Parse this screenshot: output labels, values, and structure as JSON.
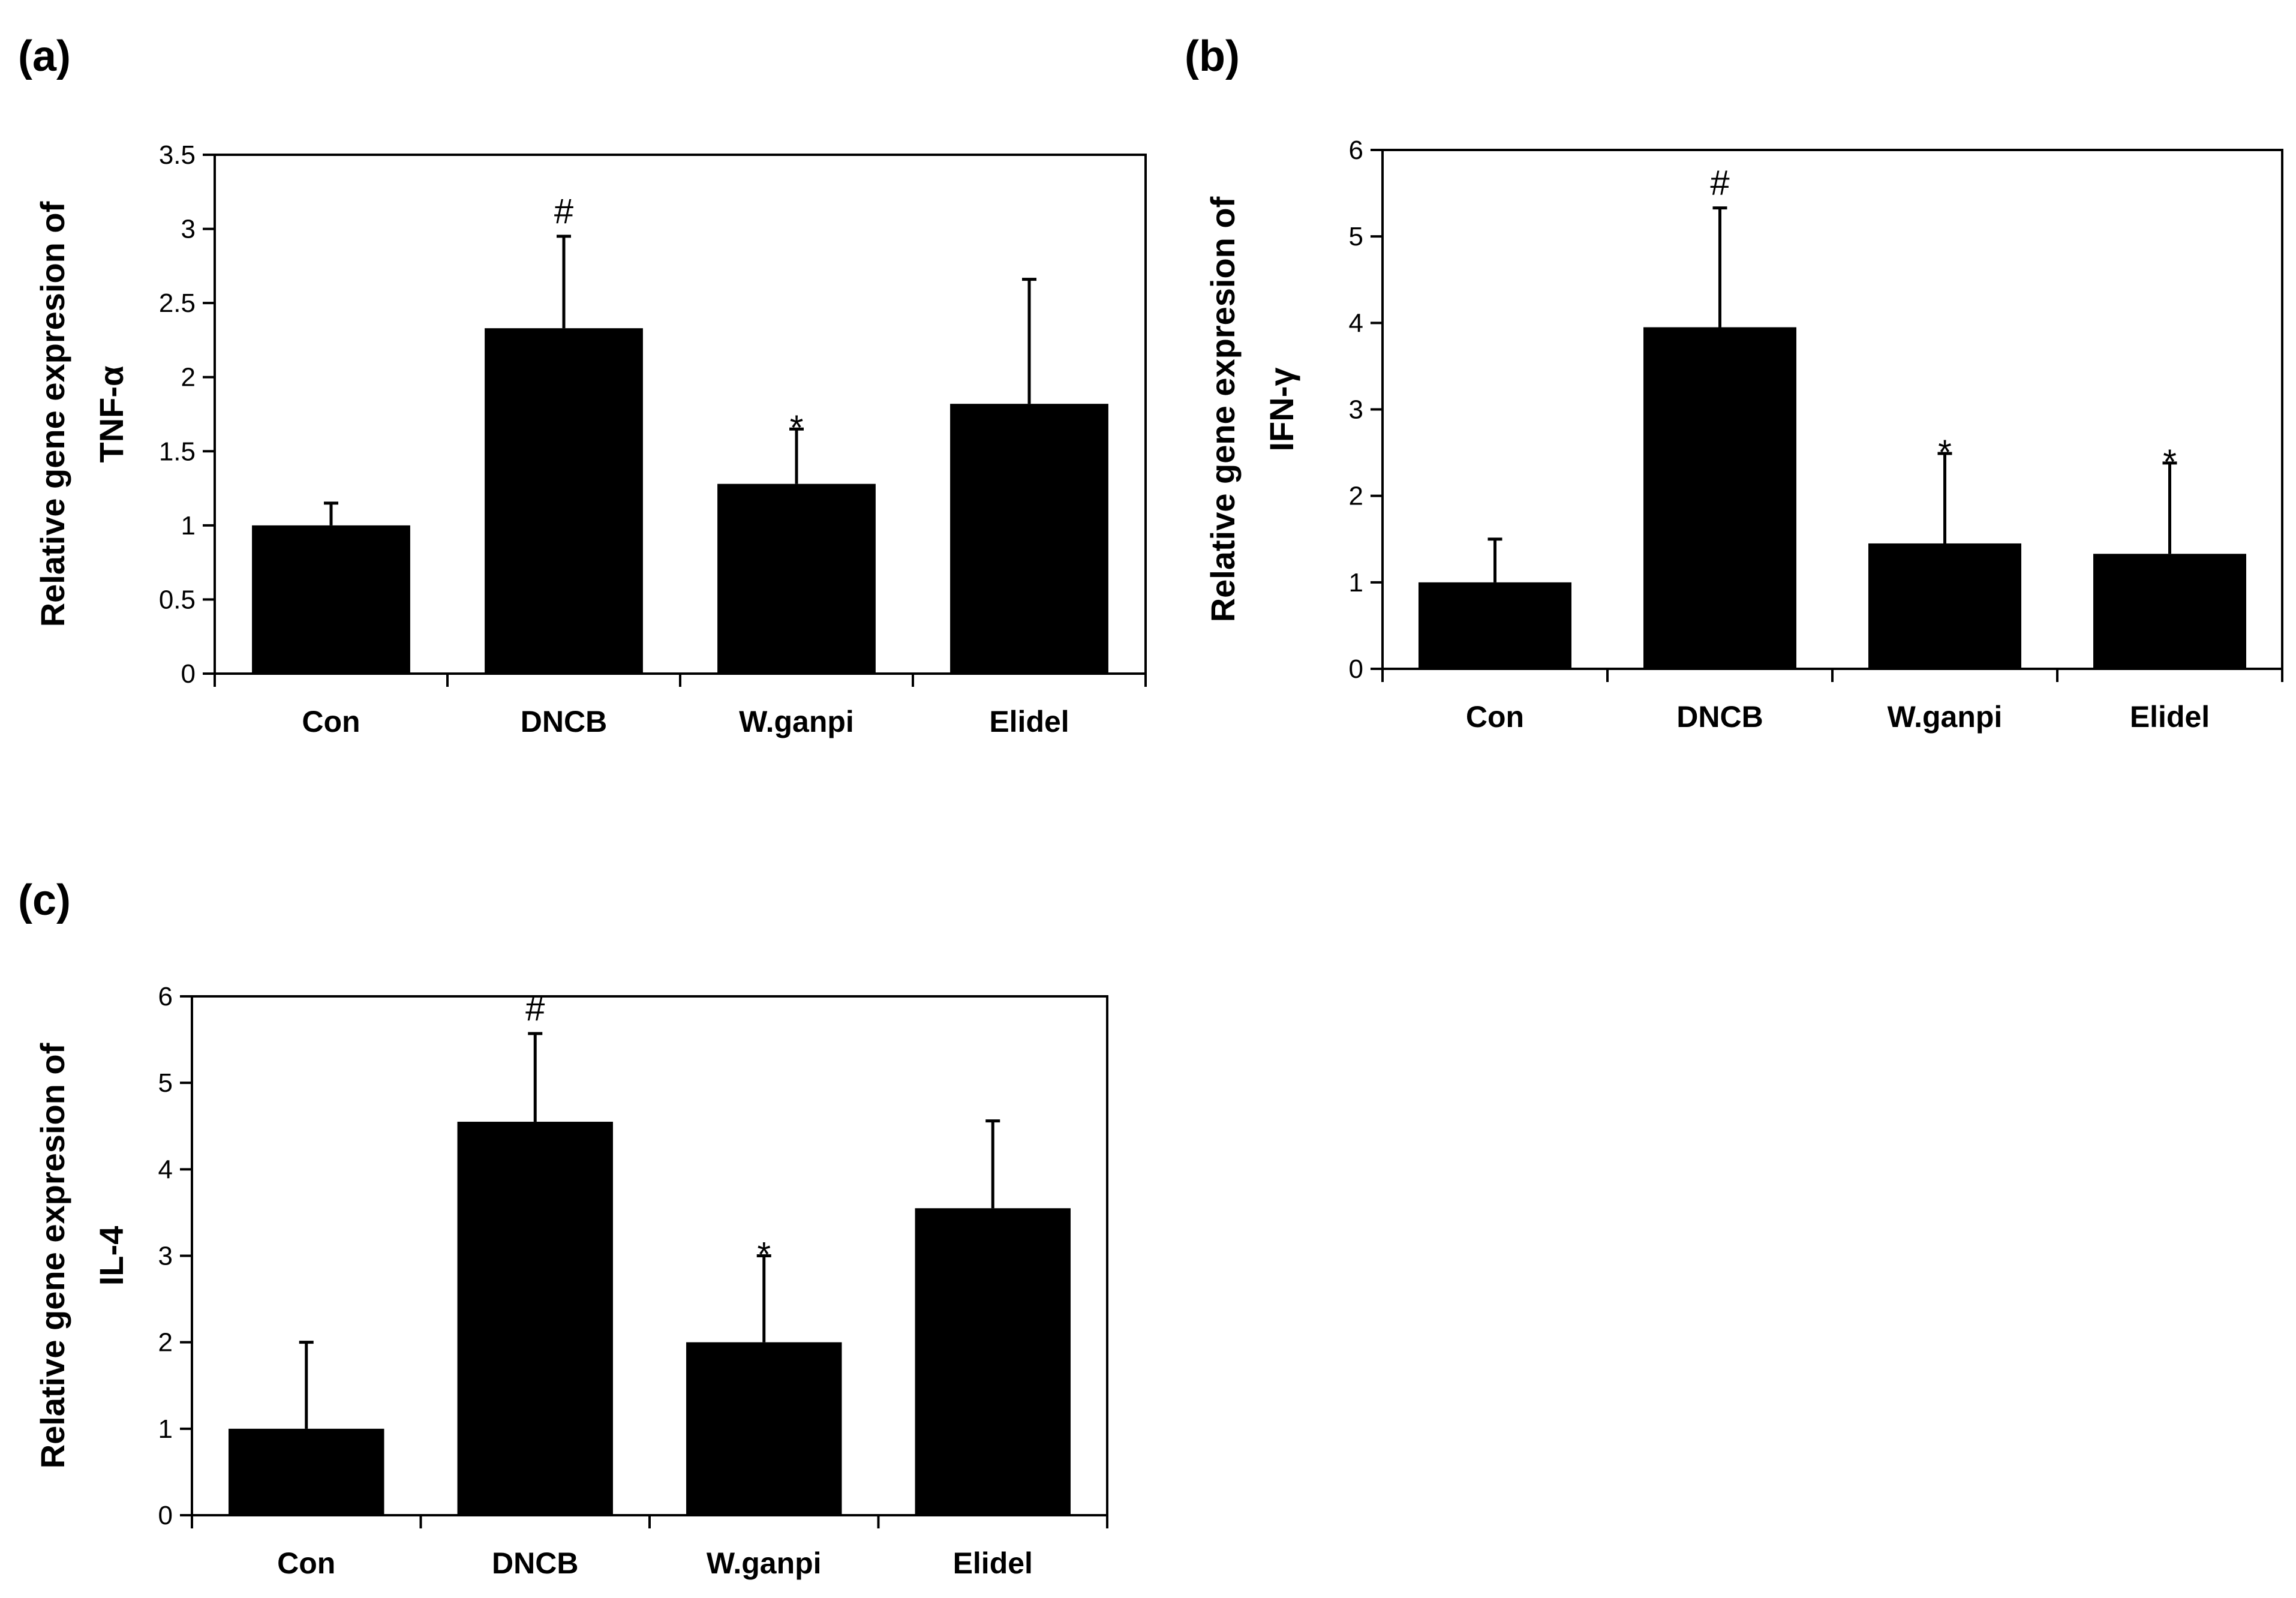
{
  "figure": {
    "colors": {
      "bar": "#000000",
      "axis": "#000000",
      "background": "#ffffff"
    }
  },
  "chart_data": [
    {
      "panel": "(a)",
      "type": "bar",
      "categories": [
        "Con",
        "DNCB",
        "W.ganpi",
        "Elidel"
      ],
      "values": [
        1.0,
        2.33,
        1.28,
        1.82
      ],
      "errors": [
        0.15,
        0.62,
        0.37,
        0.84
      ],
      "annotations": [
        "",
        "#",
        "*",
        ""
      ],
      "ylabel_line1": "Relative gene expresion of",
      "ylabel_line2": "TNF-α",
      "ylim": [
        0,
        3.5
      ],
      "yticks": [
        0,
        0.5,
        1,
        1.5,
        2,
        2.5,
        3,
        3.5
      ],
      "ytick_labels": [
        "0",
        "0.5",
        "1",
        "1.5",
        "2",
        "2.5",
        "3",
        "3.5"
      ]
    },
    {
      "panel": "(b)",
      "type": "bar",
      "categories": [
        "Con",
        "DNCB",
        "W.ganpi",
        "Elidel"
      ],
      "values": [
        1.0,
        3.95,
        1.45,
        1.33
      ],
      "errors": [
        0.5,
        1.38,
        1.04,
        1.05
      ],
      "annotations": [
        "",
        "#",
        "*",
        "*"
      ],
      "ylabel_line1": "Relative gene expresion of",
      "ylabel_line2": "IFN-γ",
      "ylim": [
        0,
        6
      ],
      "yticks": [
        0,
        1,
        2,
        3,
        4,
        5,
        6
      ],
      "ytick_labels": [
        "0",
        "1",
        "2",
        "3",
        "4",
        "5",
        "6"
      ]
    },
    {
      "panel": "(c)",
      "type": "bar",
      "categories": [
        "Con",
        "DNCB",
        "W.ganpi",
        "Elidel"
      ],
      "values": [
        1.0,
        4.55,
        2.0,
        3.55
      ],
      "errors": [
        1.0,
        1.02,
        1.0,
        1.01
      ],
      "annotations": [
        "",
        "#",
        "*",
        ""
      ],
      "ylabel_line1": "Relative gene expresion of",
      "ylabel_line2": "IL-4",
      "ylim": [
        0,
        6
      ],
      "yticks": [
        0,
        1,
        2,
        3,
        4,
        5,
        6
      ],
      "ytick_labels": [
        "0",
        "1",
        "2",
        "3",
        "4",
        "5",
        "6"
      ]
    }
  ]
}
